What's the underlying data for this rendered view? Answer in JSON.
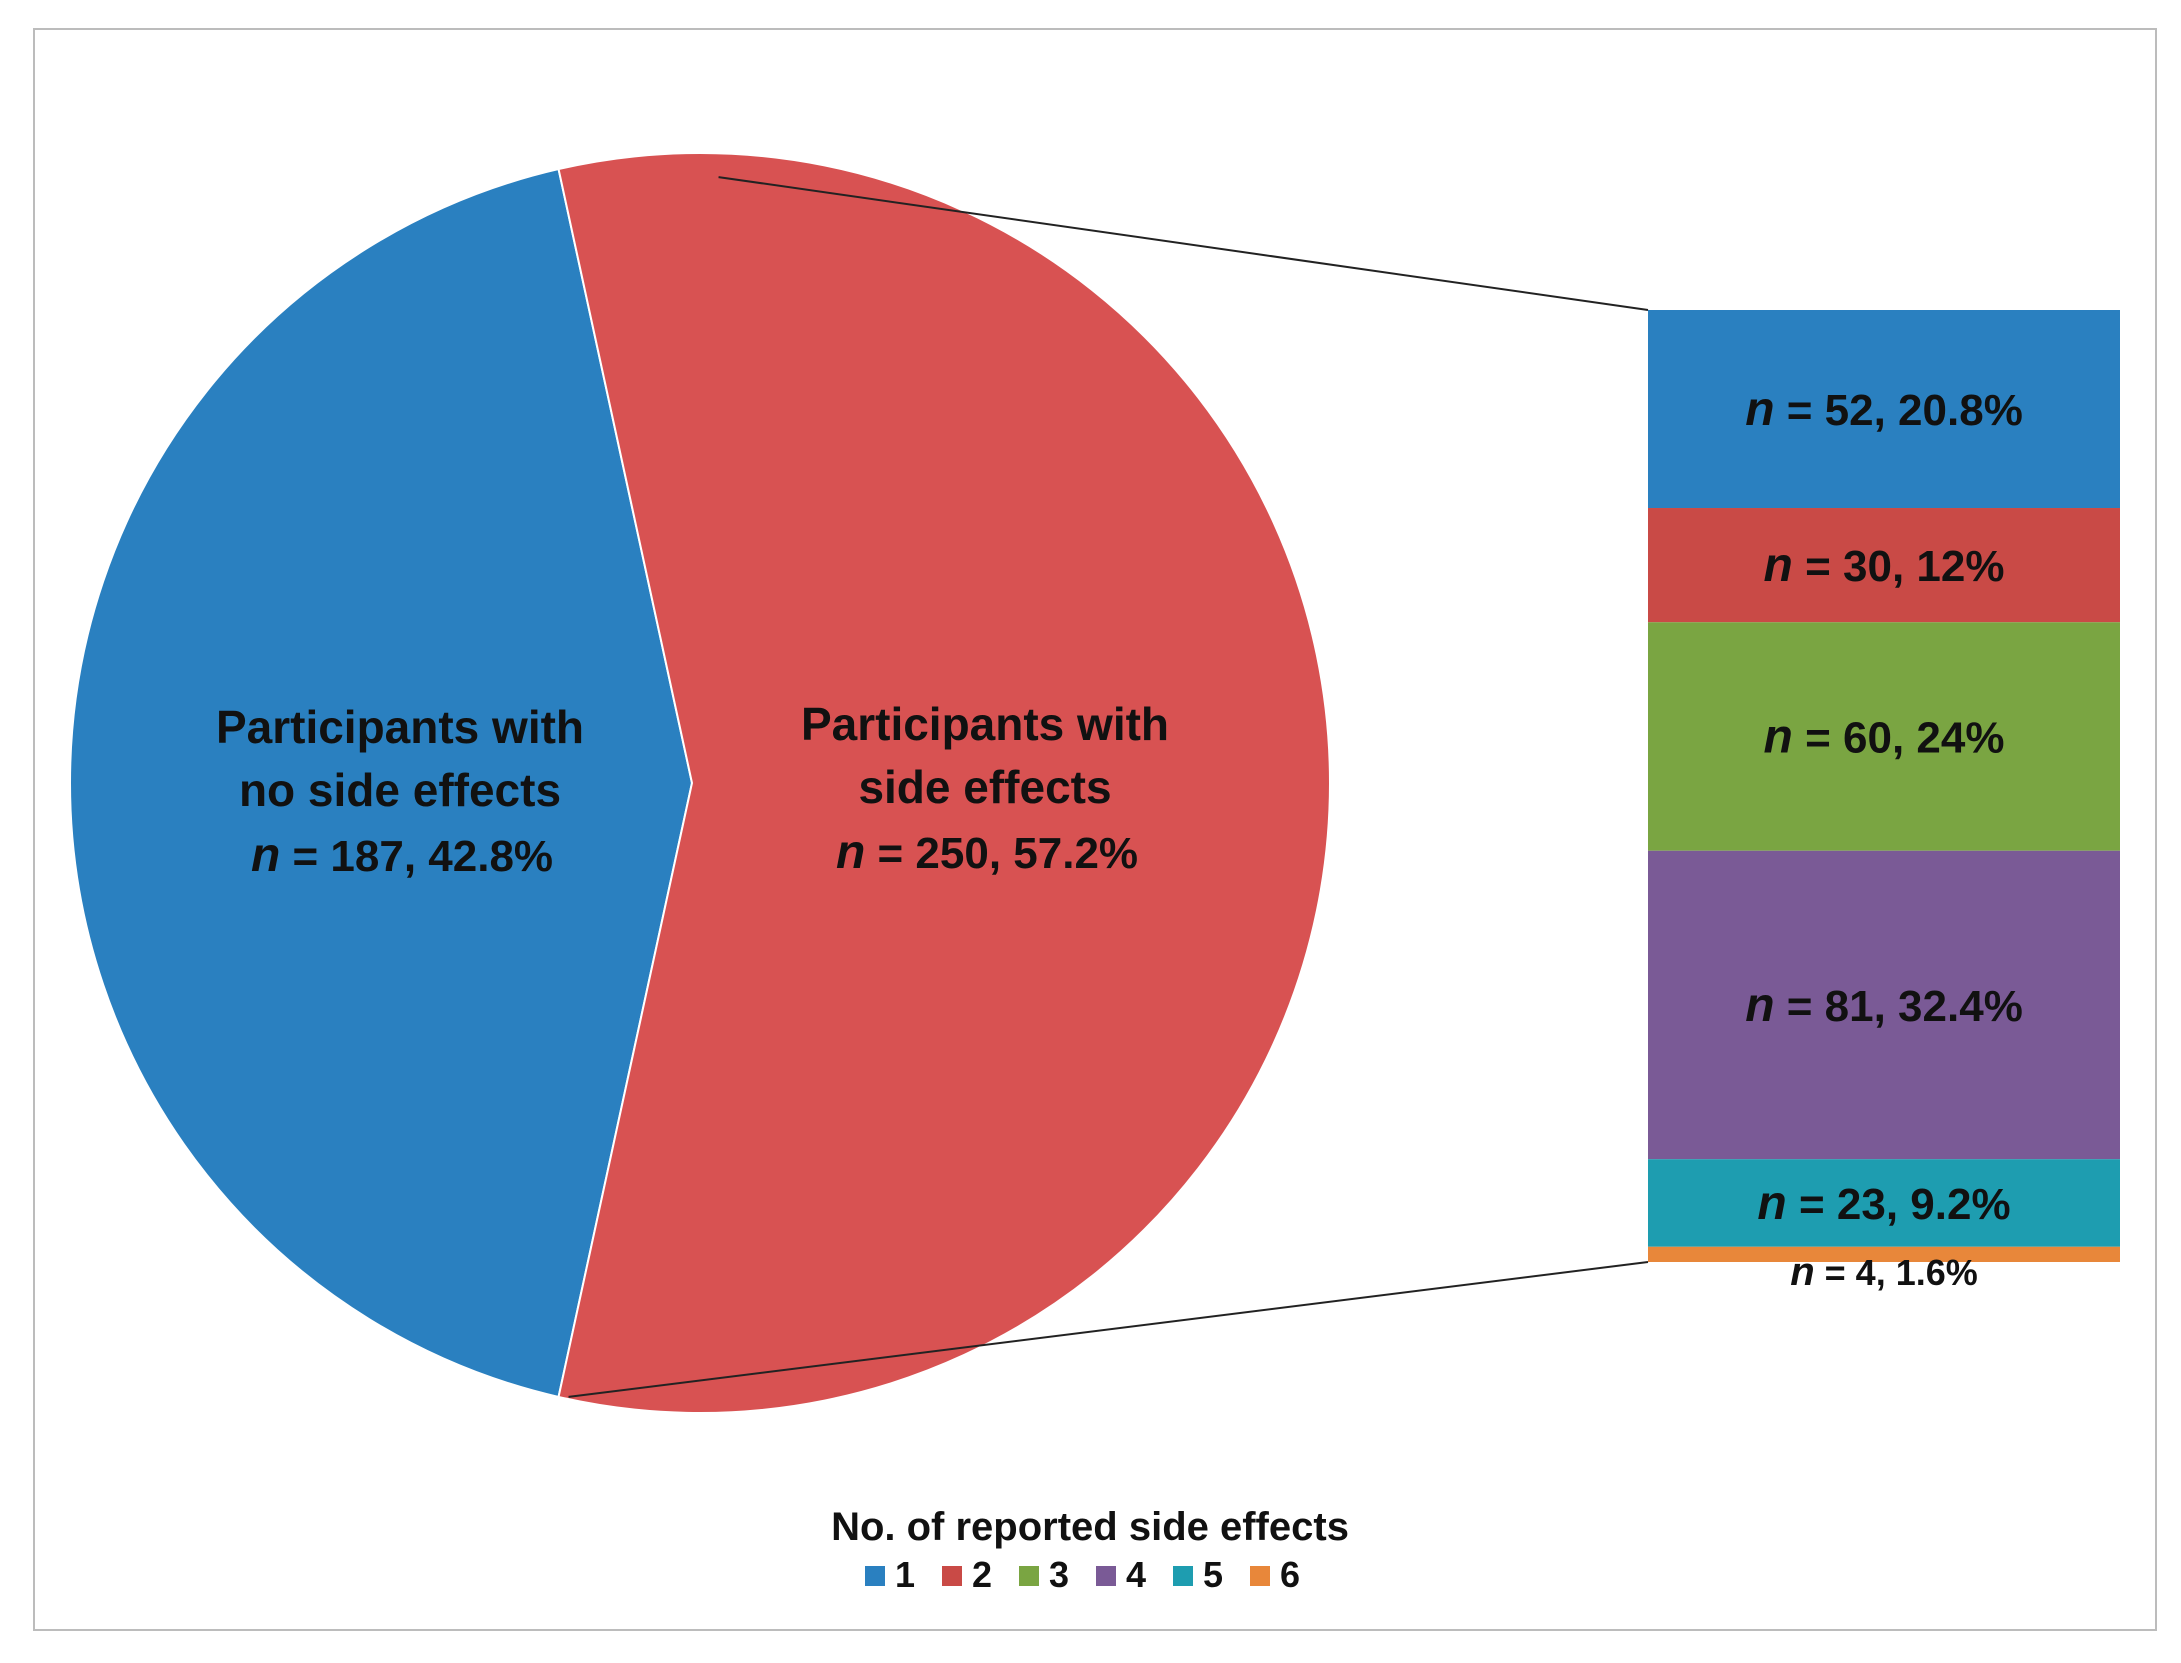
{
  "chart_data": {
    "type": "pie",
    "subtype": "bar-of-pie",
    "pie": {
      "slices": [
        {
          "line1": "Participants with",
          "line2": "no side effects",
          "n_value": "187",
          "percent_text": "42.8%",
          "value": 187,
          "percent": 42.8,
          "color": "#2A80C0"
        },
        {
          "line1": "Participants with",
          "line2": "side effects",
          "n_value": "250",
          "percent_text": "57.2%",
          "value": 250,
          "percent": 57.2,
          "color": "#D85252"
        }
      ],
      "n_symbol": "n"
    },
    "breakdown": {
      "of_slice": "Participants with side effects",
      "segments": [
        {
          "category": "1",
          "n_value": "52",
          "percent_text": "20.8%",
          "value": 52,
          "percent": 20.8,
          "color": "#2A80C0"
        },
        {
          "category": "2",
          "n_value": "30",
          "percent_text": "12%",
          "value": 30,
          "percent": 12,
          "color": "#C94A46"
        },
        {
          "category": "3",
          "n_value": "60",
          "percent_text": "24%",
          "value": 60,
          "percent": 24,
          "color": "#7AA542"
        },
        {
          "category": "4",
          "n_value": "81",
          "percent_text": "32.4%",
          "value": 81,
          "percent": 32.4,
          "color": "#7A5A96"
        },
        {
          "category": "5",
          "n_value": "23",
          "percent_text": "9.2%",
          "value": 23,
          "percent": 9.2,
          "color": "#1E9DB0"
        },
        {
          "category": "6",
          "n_value": "4",
          "percent_text": "1.6%",
          "value": 4,
          "percent": 1.6,
          "color": "#E8873A"
        }
      ]
    },
    "legend": {
      "title": "No. of reported side effects",
      "entries": [
        "1",
        "2",
        "3",
        "4",
        "5",
        "6"
      ],
      "placement": "bottom-center"
    }
  }
}
